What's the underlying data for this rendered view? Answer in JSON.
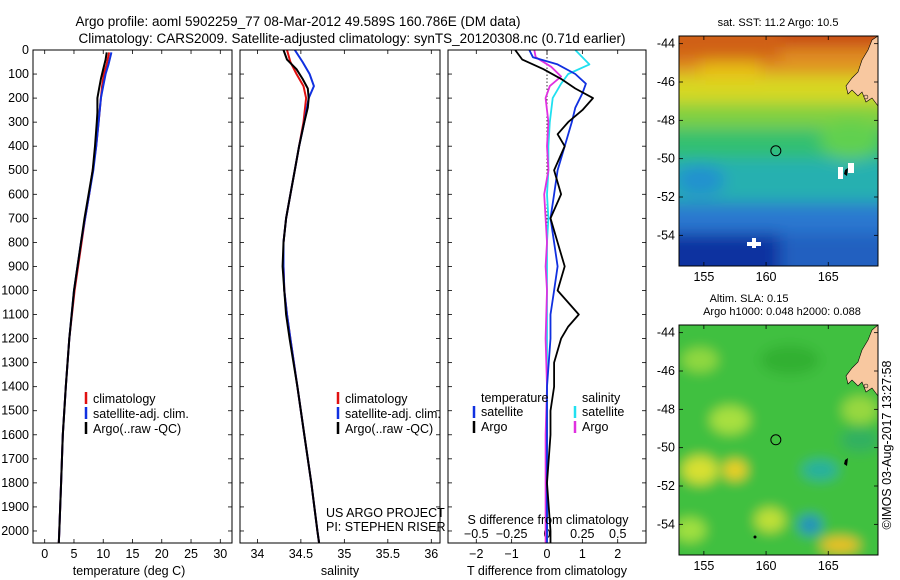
{
  "header": {
    "line1": "Argo profile: aoml 5902259_77 08-Mar-2012 49.589S 160.786E (DM data)",
    "line2": "Climatology: CARS2009. Satellite-adjusted climatology: synTS_20120308.nc (0.71d earlier)"
  },
  "colors": {
    "climatology": "#e01010",
    "satellite": "#1030e0",
    "argo": "#000000",
    "sal_satellite": "#20e0f0",
    "sal_argo": "#e030e0",
    "land": "#f8c8a0"
  },
  "chart_data": [
    {
      "type": "line",
      "title": "",
      "xlabel": "temperature (deg C)",
      "ylabel": "",
      "xlim": [
        -2,
        32
      ],
      "ylim": [
        2050,
        0
      ],
      "xticks": [
        0,
        5,
        10,
        15,
        20,
        25,
        30
      ],
      "xtick_labels": [
        "0",
        "5",
        "10",
        "15",
        "20",
        "25",
        "30"
      ],
      "yticks": [
        0,
        100,
        200,
        300,
        400,
        500,
        600,
        700,
        800,
        900,
        1000,
        1100,
        1200,
        1300,
        1400,
        1500,
        1600,
        1700,
        1800,
        1900,
        2000
      ],
      "ytick_labels": [
        "0",
        "100",
        "200",
        "300",
        "400",
        "500",
        "600",
        "700",
        "800",
        "900",
        "1000",
        "1100",
        "1200",
        "1300",
        "1400",
        "1500",
        "1600",
        "1700",
        "1800",
        "1900",
        "2000"
      ],
      "series": [
        {
          "name": "climatology",
          "depth": [
            10,
            60,
            100,
            150,
            200,
            300,
            400,
            500,
            600,
            700,
            800,
            900,
            1000,
            1200,
            1400,
            1600,
            1800,
            2000,
            2050
          ],
          "values": [
            11.0,
            10.6,
            10.1,
            9.8,
            9.6,
            9.2,
            8.8,
            8.2,
            7.6,
            6.9,
            6.3,
            5.7,
            5.1,
            4.2,
            3.6,
            3.1,
            2.8,
            2.5,
            2.4
          ]
        },
        {
          "name": "satellite-adj. clim.",
          "depth": [
            10,
            60,
            100,
            150,
            200,
            300,
            400,
            500,
            600,
            700,
            800,
            900,
            1000,
            1200,
            1400,
            1600,
            1800,
            2000,
            2050
          ],
          "values": [
            11.4,
            10.9,
            10.4,
            10.0,
            9.6,
            9.2,
            8.8,
            8.3,
            7.6,
            6.9,
            6.2,
            5.6,
            5.0,
            4.2,
            3.6,
            3.1,
            2.8,
            2.5,
            2.4
          ]
        },
        {
          "name": "Argo(..raw -QC)",
          "depth": [
            10,
            40,
            80,
            120,
            160,
            200,
            260,
            300,
            400,
            500,
            600,
            700,
            800,
            900,
            1000,
            1200,
            1400,
            1600,
            1800,
            2000,
            2050
          ],
          "values": [
            10.6,
            10.4,
            10.0,
            9.6,
            9.3,
            9.0,
            9.0,
            8.9,
            8.6,
            8.2,
            7.5,
            6.8,
            6.2,
            5.6,
            5.0,
            4.2,
            3.6,
            3.1,
            2.8,
            2.5,
            2.4
          ]
        }
      ],
      "legend": [
        "climatology",
        "satellite-adj. clim.",
        "Argo(..raw -QC)"
      ]
    },
    {
      "type": "line",
      "title": "",
      "xlabel": "salinity",
      "ylabel": "",
      "xlim": [
        33.8,
        36.1
      ],
      "ylim": [
        2050,
        0
      ],
      "xticks": [
        34,
        34.5,
        35,
        35.5,
        36
      ],
      "xtick_labels": [
        "34",
        "34.5",
        "35",
        "35.5",
        "36"
      ],
      "series": [
        {
          "name": "climatology",
          "depth": [
            0,
            50,
            100,
            150,
            200,
            300,
            400,
            500,
            600,
            700,
            800,
            900,
            1000,
            1100,
            1200,
            1400,
            1600,
            1800,
            2000,
            2050
          ],
          "values": [
            34.34,
            34.38,
            34.45,
            34.53,
            34.56,
            34.53,
            34.48,
            34.43,
            34.38,
            34.33,
            34.3,
            34.3,
            34.31,
            34.34,
            34.38,
            34.46,
            34.54,
            34.62,
            34.69,
            34.71
          ]
        },
        {
          "name": "satellite-adj. clim.",
          "depth": [
            0,
            50,
            100,
            150,
            200,
            300,
            400,
            500,
            600,
            700,
            800,
            900,
            1000,
            1100,
            1200,
            1400,
            1600,
            1800,
            2000,
            2050
          ],
          "values": [
            34.43,
            34.52,
            34.6,
            34.65,
            34.59,
            34.54,
            34.48,
            34.43,
            34.38,
            34.33,
            34.3,
            34.3,
            34.31,
            34.34,
            34.38,
            34.46,
            34.54,
            34.62,
            34.69,
            34.71
          ]
        },
        {
          "name": "Argo(..raw -QC)",
          "depth": [
            0,
            40,
            80,
            120,
            160,
            200,
            240,
            300,
            400,
            500,
            600,
            700,
            800,
            900,
            1000,
            1100,
            1200,
            1400,
            1600,
            1800,
            2000,
            2050
          ],
          "values": [
            34.3,
            34.34,
            34.45,
            34.52,
            34.58,
            34.59,
            34.58,
            34.54,
            34.48,
            34.43,
            34.38,
            34.33,
            34.3,
            34.29,
            34.31,
            34.33,
            34.37,
            34.46,
            34.54,
            34.62,
            34.69,
            34.71
          ]
        }
      ],
      "legend": [
        "climatology",
        "satellite-adj. clim.",
        "Argo(..raw -QC)"
      ],
      "annotation": [
        "US ARGO PROJECT",
        "PI: STEPHEN RISER"
      ]
    },
    {
      "type": "line",
      "title": "",
      "xlabel": "T difference from climatology",
      "xlabel_top": "S difference from climatology",
      "ylabel": "",
      "xlim": [
        -2.8,
        2.8
      ],
      "ylim": [
        2050,
        0
      ],
      "xticks": [
        -2,
        -1,
        0,
        1,
        2
      ],
      "xtick_labels": [
        "−2",
        "−1",
        "0",
        "1",
        "2"
      ],
      "sticks": [
        -0.5,
        -0.25,
        0,
        0.25,
        0.5
      ],
      "stick_labels": [
        "−0.5",
        "−0.25",
        "0",
        "0.25",
        "0.5"
      ],
      "series": [
        {
          "name": "temperature satellite",
          "depth": [
            0,
            30,
            60,
            100,
            140,
            180,
            240,
            300,
            400,
            500,
            600,
            700,
            800,
            900,
            1000,
            1100,
            1200,
            1400,
            1600,
            1800,
            2000,
            2050
          ],
          "values": [
            -0.5,
            -0.4,
            0.3,
            0.8,
            1.1,
            1.0,
            0.8,
            0.7,
            0.5,
            0.3,
            0.2,
            0.1,
            0.2,
            0.3,
            0.2,
            0.1,
            0.1,
            0.0,
            0.0,
            0.0,
            0.0,
            0.0
          ]
        },
        {
          "name": "temperature Argo",
          "depth": [
            0,
            40,
            80,
            120,
            160,
            200,
            250,
            300,
            350,
            400,
            500,
            600,
            700,
            800,
            900,
            1000,
            1100,
            1150,
            1200,
            1300,
            1400,
            1500,
            1600,
            1800,
            2000,
            2050
          ],
          "values": [
            -0.9,
            -0.7,
            -0.1,
            0.4,
            0.8,
            1.3,
            1.0,
            0.6,
            0.3,
            0.5,
            0.2,
            0.4,
            0.1,
            0.3,
            0.5,
            0.3,
            0.9,
            0.6,
            0.4,
            0.2,
            0.2,
            0.1,
            0.1,
            0.0,
            0.1,
            0.1
          ]
        },
        {
          "name": "salinity satellite",
          "depth": [
            0,
            30,
            60,
            100,
            140,
            200,
            300,
            400,
            500,
            600,
            700,
            800,
            900,
            1000,
            1100,
            1200,
            1400,
            1600,
            1800,
            2000,
            2050
          ],
          "values": [
            0.2,
            0.25,
            0.3,
            0.15,
            0.1,
            0.04,
            0.02,
            0.01,
            0.01,
            0.0,
            0.01,
            0.0,
            0.0,
            0.0,
            0.0,
            0.0,
            0.0,
            0.0,
            0.0,
            0.0,
            0.0
          ]
        },
        {
          "name": "salinity Argo",
          "depth": [
            0,
            30,
            70,
            110,
            150,
            200,
            300,
            400,
            500,
            600,
            700,
            800,
            900,
            1000,
            1200,
            1400,
            1600,
            1800,
            2000,
            2050
          ],
          "values": [
            -0.09,
            -0.08,
            0.03,
            0.1,
            0.02,
            -0.01,
            0.01,
            0.0,
            0.01,
            -0.02,
            -0.01,
            0.0,
            -0.01,
            0.0,
            -0.01,
            0.0,
            -0.01,
            -0.01,
            -0.01,
            -0.01
          ]
        }
      ],
      "legend": [
        "temperature",
        "salinity",
        "satellite",
        "Argo",
        "satellite",
        "Argo"
      ]
    },
    {
      "type": "heatmap",
      "title": "sat. SST: 11.2 Argo: 10.5",
      "xlabel": "",
      "ylabel": "",
      "xlim": [
        153,
        169
      ],
      "ylim": [
        -55.6,
        -43.6
      ],
      "xticks": [
        155,
        160,
        165
      ],
      "xtick_labels": [
        "155",
        "160",
        "165"
      ],
      "yticks": [
        -44,
        -46,
        -48,
        -50,
        -52,
        -54
      ],
      "ytick_labels": [
        "-44",
        "-46",
        "-48",
        "-50",
        "-52",
        "-54"
      ],
      "marker": {
        "lon": 160.786,
        "lat": -49.589
      }
    },
    {
      "type": "heatmap",
      "title": "Altim. SLA: 0.15",
      "subtitle": "Argo h1000: 0.048 h2000: 0.088",
      "xlabel": "",
      "ylabel": "",
      "xlim": [
        153,
        169
      ],
      "ylim": [
        -55.6,
        -43.6
      ],
      "xticks": [
        155,
        160,
        165
      ],
      "xtick_labels": [
        "155",
        "160",
        "165"
      ],
      "yticks": [
        -44,
        -46,
        -48,
        -50,
        -52,
        -54
      ],
      "ytick_labels": [
        "-44",
        "-46",
        "-48",
        "-50",
        "-52",
        "-54"
      ],
      "marker": {
        "lon": 160.786,
        "lat": -49.589
      }
    }
  ],
  "footer": {
    "timestamp": "©IMOS 03-Aug-2017 13:27:58"
  }
}
